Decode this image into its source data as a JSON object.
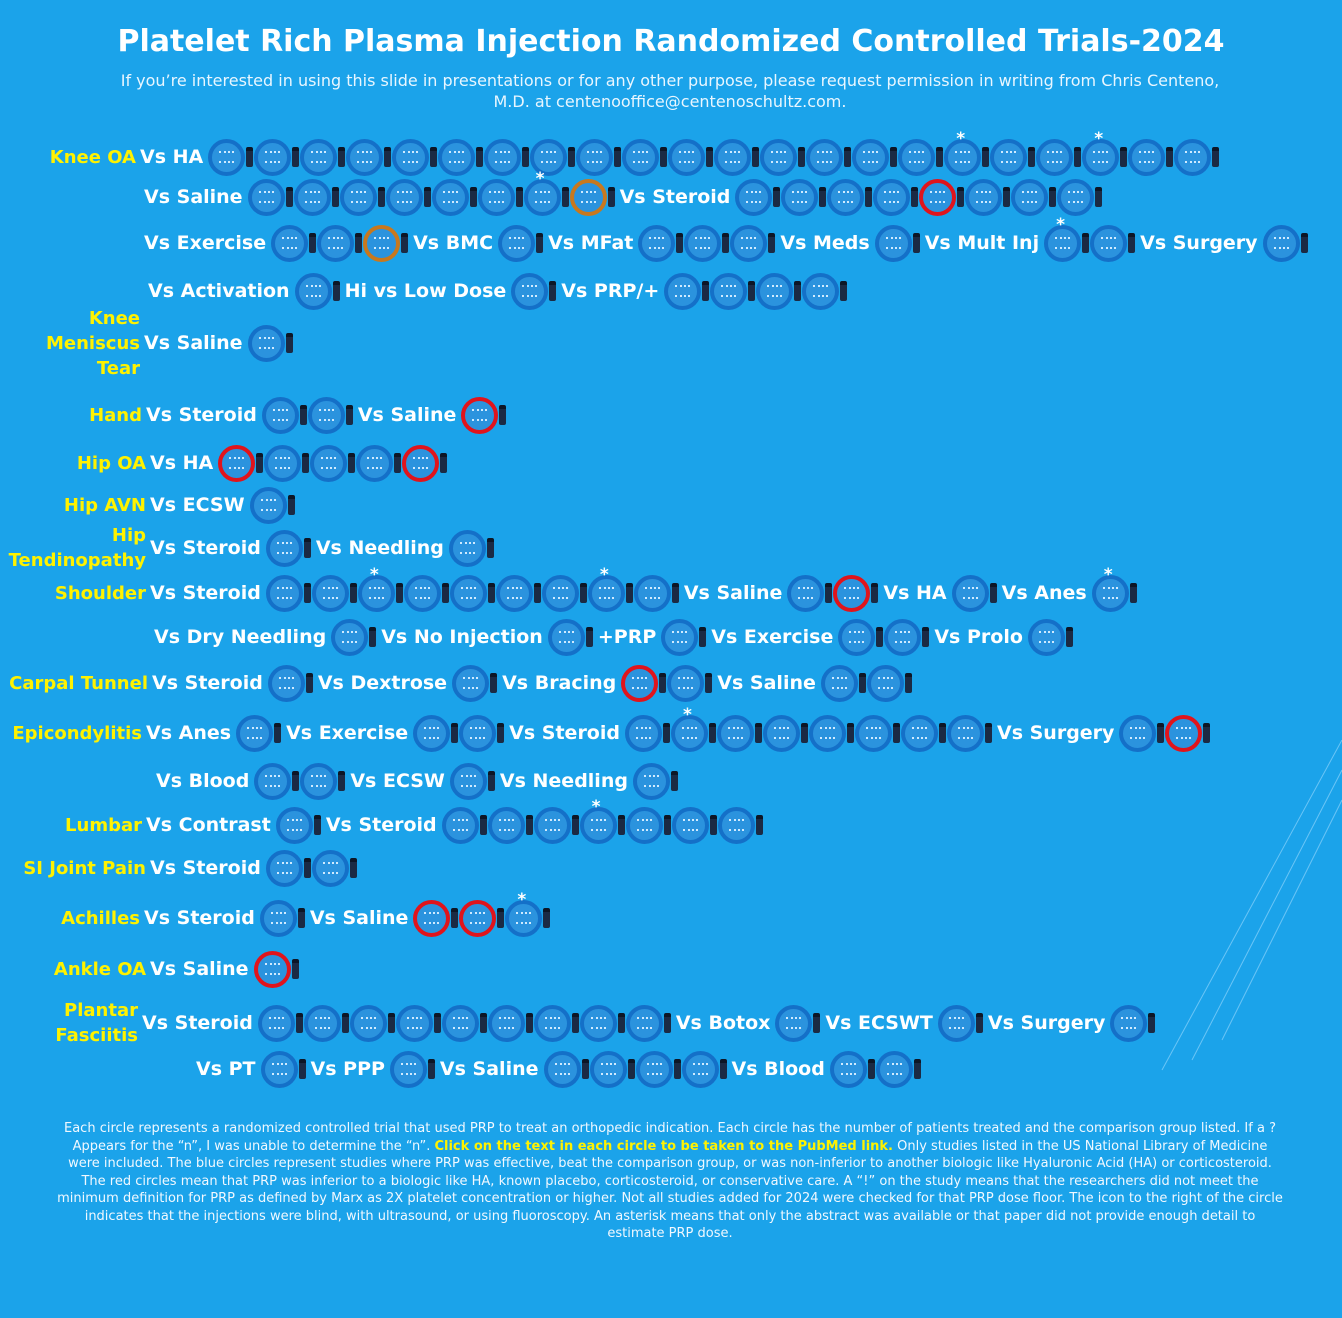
{
  "title": "Platelet Rich Plasma Injection Randomized Controlled Trials-2024",
  "subtitle": "If you’re interested in using this slide in presentations or for any other purpose, please request permission in writing from Chris Centeno, M.D. at centenooffice@centenoschultz.com.",
  "colors": {
    "background": "#1ba3ea",
    "effective": "#1470c8",
    "inferior": "#e0141c",
    "orange": "#c8781e",
    "indication": "#fff200"
  },
  "rows": [
    {
      "disease": "Knee OA",
      "segments": [
        {
          "label": "Vs HA",
          "trials": [
            "b",
            "b",
            "b",
            "b",
            "b",
            "b",
            "b",
            "b",
            "b",
            "b",
            "b",
            "b",
            "b",
            "b",
            "b",
            "b",
            "b*",
            "b",
            "b",
            "b*",
            "b",
            "b"
          ]
        }
      ]
    },
    {
      "disease": "",
      "segments": [
        {
          "label": "Vs Saline",
          "trials": [
            "b",
            "b",
            "b",
            "b",
            "b",
            "b",
            "b*",
            "o"
          ]
        },
        {
          "label": "Vs Steroid",
          "trials": [
            "b",
            "b",
            "b",
            "b",
            "r",
            "b",
            "b",
            "b"
          ]
        }
      ]
    },
    {
      "disease": "",
      "segments": [
        {
          "label": "Vs Exercise",
          "trials": [
            "b",
            "b",
            "o"
          ]
        },
        {
          "label": "Vs BMC",
          "trials": [
            "b"
          ]
        },
        {
          "label": "Vs MFat",
          "trials": [
            "b",
            "b",
            "b"
          ]
        },
        {
          "label": "Vs Meds",
          "trials": [
            "b"
          ]
        },
        {
          "label": "Vs Mult Inj",
          "trials": [
            "b*",
            "b"
          ]
        },
        {
          "label": "Vs Surgery",
          "trials": [
            "b"
          ]
        }
      ]
    },
    {
      "disease": "",
      "segments": [
        {
          "label": "Vs Activation",
          "trials": [
            "b"
          ]
        },
        {
          "label": "Hi vs Low Dose",
          "trials": [
            "b"
          ]
        },
        {
          "label": "Vs PRP/+",
          "trials": [
            "b",
            "b",
            "b",
            "b"
          ]
        }
      ]
    },
    {
      "disease": "Knee Meniscus Tear",
      "segments": [
        {
          "label": "Vs Saline",
          "trials": [
            "b"
          ]
        }
      ]
    },
    {
      "disease": "Hand",
      "segments": [
        {
          "label": "Vs Steroid",
          "trials": [
            "b",
            "b"
          ]
        },
        {
          "label": "Vs Saline",
          "trials": [
            "r"
          ]
        }
      ]
    },
    {
      "disease": "Hip OA",
      "segments": [
        {
          "label": "Vs HA",
          "trials": [
            "r",
            "b",
            "b",
            "b",
            "r"
          ]
        }
      ]
    },
    {
      "disease": "Hip AVN",
      "segments": [
        {
          "label": "Vs ECSW",
          "trials": [
            "b"
          ]
        }
      ]
    },
    {
      "disease": "Hip Tendinopathy",
      "segments": [
        {
          "label": "Vs Steroid",
          "trials": [
            "b"
          ]
        },
        {
          "label": "Vs Needling",
          "trials": [
            "b"
          ]
        }
      ]
    },
    {
      "disease": "Shoulder",
      "segments": [
        {
          "label": "Vs Steroid",
          "trials": [
            "b",
            "b",
            "b*",
            "b",
            "b",
            "b",
            "b",
            "b*",
            "b"
          ]
        },
        {
          "label": "Vs Saline",
          "trials": [
            "b",
            "r"
          ]
        },
        {
          "label": "Vs HA",
          "trials": [
            "b"
          ]
        },
        {
          "label": "Vs Anes",
          "trials": [
            "b*"
          ]
        }
      ]
    },
    {
      "disease": "",
      "segments": [
        {
          "label": "Vs Dry Needling",
          "trials": [
            "b"
          ]
        },
        {
          "label": "Vs No Injection",
          "trials": [
            "b"
          ]
        },
        {
          "label": "+PRP",
          "trials": [
            "b"
          ]
        },
        {
          "label": "Vs Exercise",
          "trials": [
            "b",
            "b"
          ]
        },
        {
          "label": "Vs Prolo",
          "trials": [
            "b"
          ]
        }
      ]
    },
    {
      "disease": "Carpal Tunnel",
      "segments": [
        {
          "label": "Vs Steroid",
          "trials": [
            "b"
          ]
        },
        {
          "label": "Vs Dextrose",
          "trials": [
            "b"
          ]
        },
        {
          "label": "Vs Bracing",
          "trials": [
            "r",
            "b"
          ]
        },
        {
          "label": "Vs Saline",
          "trials": [
            "b",
            "b"
          ]
        }
      ]
    },
    {
      "disease": "Epicondylitis",
      "segments": [
        {
          "label": "Vs Anes",
          "trials": [
            "b"
          ]
        },
        {
          "label": "Vs Exercise",
          "trials": [
            "b",
            "b"
          ]
        },
        {
          "label": "Vs Steroid",
          "trials": [
            "b",
            "b*",
            "b",
            "b",
            "b",
            "b",
            "b",
            "b"
          ]
        },
        {
          "label": "Vs Surgery",
          "trials": [
            "b",
            "r"
          ]
        }
      ]
    },
    {
      "disease": "",
      "segments": [
        {
          "label": "Vs Blood",
          "trials": [
            "b",
            "b"
          ]
        },
        {
          "label": "Vs ECSW",
          "trials": [
            "b"
          ]
        },
        {
          "label": "Vs Needling",
          "trials": [
            "b"
          ]
        }
      ]
    },
    {
      "disease": "Lumbar",
      "segments": [
        {
          "label": "Vs Contrast",
          "trials": [
            "b"
          ]
        },
        {
          "label": "Vs Steroid",
          "trials": [
            "b",
            "b",
            "b",
            "b*",
            "b",
            "b",
            "b"
          ]
        }
      ]
    },
    {
      "disease": "SI Joint Pain",
      "segments": [
        {
          "label": "Vs Steroid",
          "trials": [
            "b",
            "b"
          ]
        }
      ]
    },
    {
      "disease": "Achilles",
      "segments": [
        {
          "label": "Vs Steroid",
          "trials": [
            "b"
          ]
        },
        {
          "label": "Vs Saline",
          "trials": [
            "r",
            "r",
            "b*"
          ]
        }
      ]
    },
    {
      "disease": "Ankle OA",
      "segments": [
        {
          "label": "Vs Saline",
          "trials": [
            "r"
          ]
        }
      ]
    },
    {
      "disease": "Plantar Fasciitis",
      "segments": [
        {
          "label": "Vs Steroid",
          "trials": [
            "b",
            "b",
            "b",
            "b",
            "b",
            "b",
            "b",
            "b",
            "b"
          ]
        },
        {
          "label": "Vs Botox",
          "trials": [
            "b"
          ]
        },
        {
          "label": "Vs ECSWT",
          "trials": [
            "b"
          ]
        },
        {
          "label": "Vs Surgery",
          "trials": [
            "b"
          ]
        }
      ]
    },
    {
      "disease": "",
      "segments": [
        {
          "label": "Vs PT",
          "trials": [
            "b"
          ]
        },
        {
          "label": "Vs PPP",
          "trials": [
            "b"
          ]
        },
        {
          "label": "Vs Saline",
          "trials": [
            "b",
            "b",
            "b",
            "b"
          ]
        },
        {
          "label": "Vs Blood",
          "trials": [
            "b",
            "b"
          ]
        }
      ]
    }
  ],
  "footer": {
    "part1": "Each circle represents a randomized controlled trial that used PRP to treat an orthopedic indication. Each circle has the number of patients treated and the comparison group listed. If a ? Appears for the “n”, I was unable to determine the “n”. ",
    "highlight": "Click on the text in each circle to be taken to the PubMed link.",
    "part2": " Only studies listed in the US National Library of Medicine were included. The blue circles represent studies where PRP was effective, beat the comparison group, or was non-inferior to another biologic like Hyaluronic Acid (HA) or corticosteroid. The red circles mean that PRP was inferior to a biologic like HA, known placebo, corticosteroid, or conservative care. A “!” on the study means that the researchers did not meet the minimum definition for PRP as defined by Marx as 2X platelet concentration or higher. Not all studies added for 2024 were checked for that PRP dose floor. The icon to the right of the circle indicates that the injections were blind, with ultrasound, or using fluoroscopy. An asterisk means that only the abstract was available or that paper did not provide enough detail to estimate PRP dose."
  }
}
